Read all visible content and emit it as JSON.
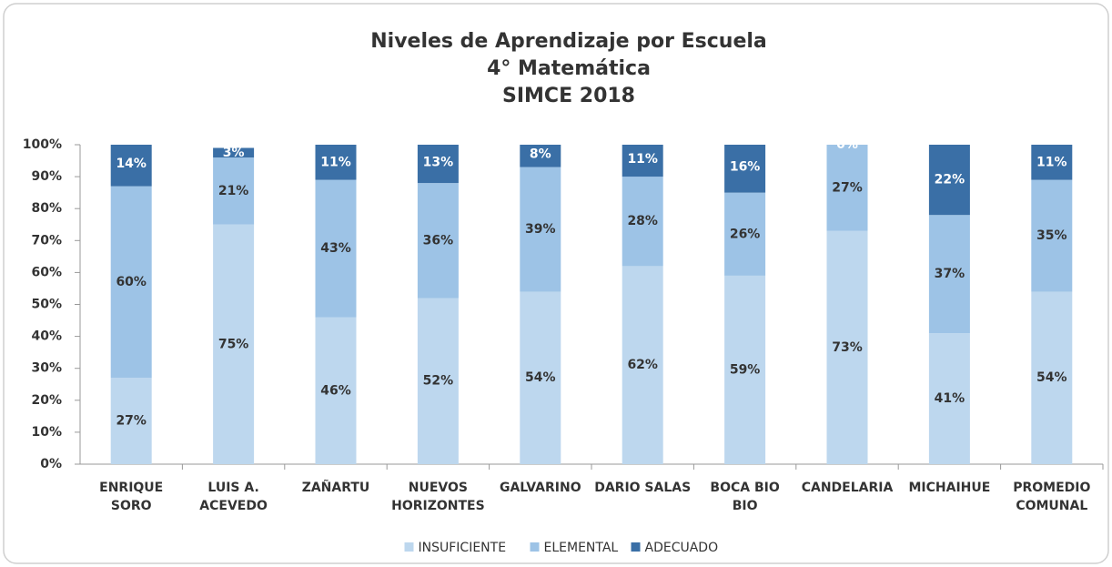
{
  "chart_data": {
    "type": "stacked_bar",
    "title": "Niveles de Aprendizaje  por Escuela\n4° Matemática\nSIMCE 2018",
    "categories": [
      "ENRIQUE\nSORO",
      "LUIS A.\nACEVEDO",
      "ZAÑARTU",
      "NUEVOS\nHORIZONTES",
      "GALVARINO",
      "DARIO SALAS",
      "BOCA BIO\nBIO",
      "CANDELARIA",
      "MICHAIHUE",
      "PROMEDIO\nCOMUNAL"
    ],
    "series": [
      {
        "name": "INSUFICIENTE",
        "color": "#bdd7ee",
        "label_color": "#333333",
        "values": [
          27,
          75,
          46,
          52,
          54,
          62,
          59,
          73,
          41,
          54
        ],
        "value_labels": [
          "27%",
          "75%",
          "46%",
          "52%",
          "54%",
          "62%",
          "59%",
          "73%",
          "41%",
          "54%"
        ]
      },
      {
        "name": "ELEMENTAL",
        "color": "#9dc3e6",
        "label_color": "#333333",
        "values": [
          60,
          21,
          43,
          36,
          39,
          28,
          26,
          27,
          37,
          35
        ],
        "value_labels": [
          "60%",
          "21%",
          "43%",
          "36%",
          "39%",
          "28%",
          "26%",
          "27%",
          "37%",
          "35%"
        ]
      },
      {
        "name": "ADECUADO",
        "color": "#3a6fa6",
        "label_color": "#ffffff",
        "values": [
          14,
          3,
          11,
          13,
          8,
          11,
          16,
          0,
          22,
          11
        ],
        "value_labels": [
          "14%",
          "3%",
          "11%",
          "13%",
          "8%",
          "11%",
          "16%",
          "0%",
          "22%",
          "11%"
        ]
      }
    ],
    "ylim": [
      0,
      100
    ],
    "yticks": [
      {
        "value": 0,
        "label": "0%"
      },
      {
        "value": 10,
        "label": "10%"
      },
      {
        "value": 20,
        "label": "20%"
      },
      {
        "value": 30,
        "label": "30%"
      },
      {
        "value": 40,
        "label": "40%"
      },
      {
        "value": 50,
        "label": "50%"
      },
      {
        "value": 60,
        "label": "60%"
      },
      {
        "value": 70,
        "label": "70%"
      },
      {
        "value": 80,
        "label": "80%"
      },
      {
        "value": 90,
        "label": "90%"
      },
      {
        "value": 100,
        "label": "100%"
      }
    ],
    "legend": "bottom"
  }
}
